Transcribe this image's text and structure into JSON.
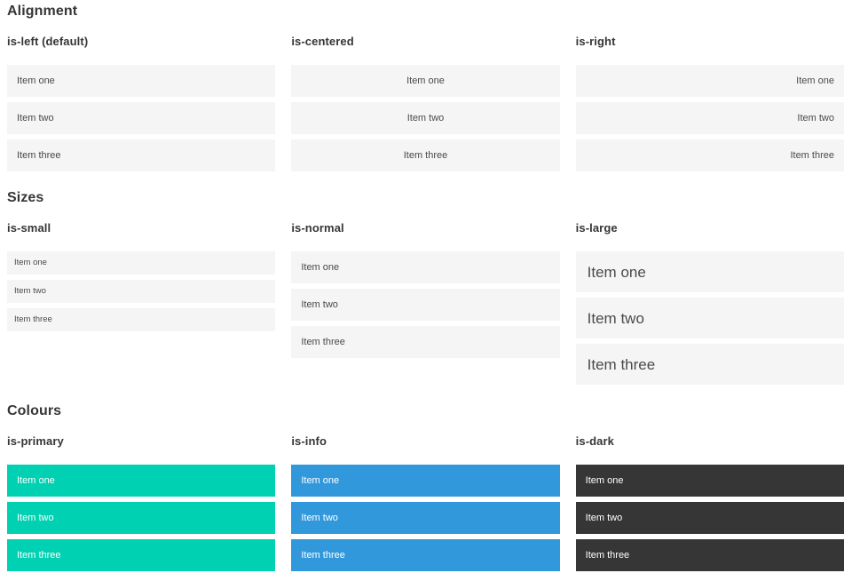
{
  "colors": {
    "primary": "#00d1b2",
    "info": "#3298dc",
    "dark": "#363636",
    "item_bg": "#f5f5f5",
    "item_text": "#4a4a4a",
    "item_text_inverse": "#ffffff",
    "heading": "#363636"
  },
  "sections": [
    {
      "title": "Alignment",
      "groups": [
        {
          "label": "is-left (default)",
          "items": [
            "Item one",
            "Item two",
            "Item three"
          ]
        },
        {
          "label": "is-centered",
          "items": [
            "Item one",
            "Item two",
            "Item three"
          ]
        },
        {
          "label": "is-right",
          "items": [
            "Item one",
            "Item two",
            "Item three"
          ]
        }
      ]
    },
    {
      "title": "Sizes",
      "groups": [
        {
          "label": "is-small",
          "items": [
            "Item one",
            "Item two",
            "Item three"
          ]
        },
        {
          "label": "is-normal",
          "items": [
            "Item one",
            "Item two",
            "Item three"
          ]
        },
        {
          "label": "is-large",
          "items": [
            "Item one",
            "Item two",
            "Item three"
          ]
        }
      ]
    },
    {
      "title": "Colours",
      "groups": [
        {
          "label": "is-primary",
          "items": [
            "Item one",
            "Item two",
            "Item three"
          ]
        },
        {
          "label": "is-info",
          "items": [
            "Item one",
            "Item two",
            "Item three"
          ]
        },
        {
          "label": "is-dark",
          "items": [
            "Item one",
            "Item two",
            "Item three"
          ]
        }
      ]
    }
  ]
}
